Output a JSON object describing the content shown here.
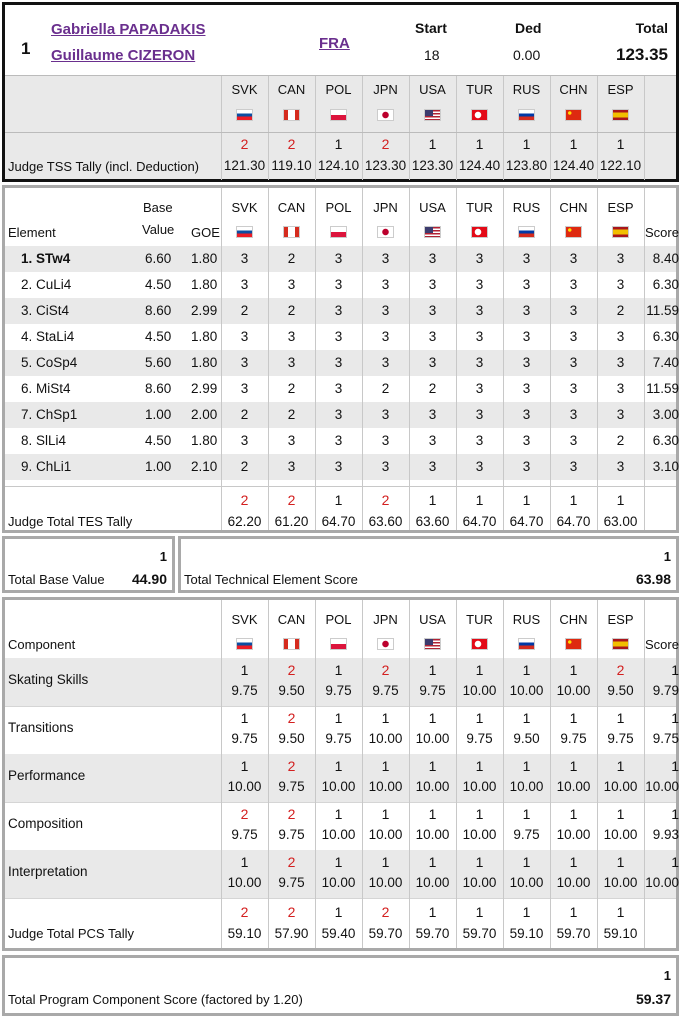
{
  "header": {
    "rank": "1",
    "name1": "Gabriella PAPADAKIS",
    "name2": "Guillaume CIZERON",
    "nation": "FRA",
    "start_label": "Start",
    "start": "18",
    "ded_label": "Ded",
    "ded": "0.00",
    "total_label": "Total",
    "total": "123.35"
  },
  "judges": [
    "SVK",
    "CAN",
    "POL",
    "JPN",
    "USA",
    "TUR",
    "RUS",
    "CHN",
    "ESP"
  ],
  "tss": {
    "label": "Judge TSS Tally (incl. Deduction)",
    "ranks": [
      "2",
      "2",
      "1",
      "2",
      "1",
      "1",
      "1",
      "1",
      "1"
    ],
    "scores": [
      "121.30",
      "119.10",
      "124.10",
      "123.30",
      "123.30",
      "124.40",
      "123.80",
      "124.40",
      "122.10"
    ]
  },
  "tes": {
    "col_element": "Element",
    "col_base1": "Base",
    "col_base2": "Value",
    "col_goe": "GOE",
    "col_score": "Score",
    "rows": [
      {
        "el": "1. STw4",
        "base": "6.60",
        "goe": "1.80",
        "marks": [
          "3",
          "2",
          "3",
          "3",
          "3",
          "3",
          "3",
          "3",
          "3"
        ],
        "score": "8.40"
      },
      {
        "el": "2. CuLi4",
        "base": "4.50",
        "goe": "1.80",
        "marks": [
          "3",
          "3",
          "3",
          "3",
          "3",
          "3",
          "3",
          "3",
          "3"
        ],
        "score": "6.30"
      },
      {
        "el": "3. CiSt4",
        "base": "8.60",
        "goe": "2.99",
        "marks": [
          "2",
          "2",
          "3",
          "3",
          "3",
          "3",
          "3",
          "3",
          "2"
        ],
        "score": "11.59"
      },
      {
        "el": "4. StaLi4",
        "base": "4.50",
        "goe": "1.80",
        "marks": [
          "3",
          "3",
          "3",
          "3",
          "3",
          "3",
          "3",
          "3",
          "3"
        ],
        "score": "6.30"
      },
      {
        "el": "5. CoSp4",
        "base": "5.60",
        "goe": "1.80",
        "marks": [
          "3",
          "3",
          "3",
          "3",
          "3",
          "3",
          "3",
          "3",
          "3"
        ],
        "score": "7.40"
      },
      {
        "el": "6. MiSt4",
        "base": "8.60",
        "goe": "2.99",
        "marks": [
          "3",
          "2",
          "3",
          "2",
          "2",
          "3",
          "3",
          "3",
          "3"
        ],
        "score": "11.59"
      },
      {
        "el": "7. ChSp1",
        "base": "1.00",
        "goe": "2.00",
        "marks": [
          "2",
          "2",
          "3",
          "3",
          "3",
          "3",
          "3",
          "3",
          "3"
        ],
        "score": "3.00"
      },
      {
        "el": "8. SlLi4",
        "base": "4.50",
        "goe": "1.80",
        "marks": [
          "3",
          "3",
          "3",
          "3",
          "3",
          "3",
          "3",
          "3",
          "2"
        ],
        "score": "6.30"
      },
      {
        "el": "9. ChLi1",
        "base": "1.00",
        "goe": "2.10",
        "marks": [
          "2",
          "3",
          "3",
          "3",
          "3",
          "3",
          "3",
          "3",
          "3"
        ],
        "score": "3.10"
      }
    ],
    "tally_label": "Judge Total TES Tally",
    "tally_ranks": [
      "2",
      "2",
      "1",
      "2",
      "1",
      "1",
      "1",
      "1",
      "1"
    ],
    "tally_scores": [
      "62.20",
      "61.20",
      "64.70",
      "63.60",
      "63.60",
      "64.70",
      "64.70",
      "64.70",
      "63.00"
    ]
  },
  "base_total": {
    "rank": "1",
    "label": "Total Base Value",
    "value": "44.90"
  },
  "tes_total": {
    "rank": "1",
    "label": "Total Technical Element Score",
    "value": "63.98"
  },
  "pcs": {
    "col_component": "Component",
    "col_score": "Score",
    "rows": [
      {
        "name": "Skating Skills",
        "ranks": [
          "1",
          "2",
          "1",
          "2",
          "1",
          "1",
          "1",
          "1",
          "2"
        ],
        "marks": [
          "9.75",
          "9.50",
          "9.75",
          "9.75",
          "9.75",
          "10.00",
          "10.00",
          "10.00",
          "9.50"
        ],
        "srank": "1",
        "score": "9.79"
      },
      {
        "name": "Transitions",
        "ranks": [
          "1",
          "2",
          "1",
          "1",
          "1",
          "1",
          "1",
          "1",
          "1"
        ],
        "marks": [
          "9.75",
          "9.50",
          "9.75",
          "10.00",
          "10.00",
          "9.75",
          "9.50",
          "9.75",
          "9.75"
        ],
        "srank": "1",
        "score": "9.75"
      },
      {
        "name": "Performance",
        "ranks": [
          "1",
          "2",
          "1",
          "1",
          "1",
          "1",
          "1",
          "1",
          "1"
        ],
        "marks": [
          "10.00",
          "9.75",
          "10.00",
          "10.00",
          "10.00",
          "10.00",
          "10.00",
          "10.00",
          "10.00"
        ],
        "srank": "1",
        "score": "10.00"
      },
      {
        "name": "Composition",
        "ranks": [
          "2",
          "2",
          "1",
          "1",
          "1",
          "1",
          "1",
          "1",
          "1"
        ],
        "marks": [
          "9.75",
          "9.75",
          "10.00",
          "10.00",
          "10.00",
          "10.00",
          "9.75",
          "10.00",
          "10.00"
        ],
        "srank": "1",
        "score": "9.93"
      },
      {
        "name": "Interpretation",
        "ranks": [
          "1",
          "2",
          "1",
          "1",
          "1",
          "1",
          "1",
          "1",
          "1"
        ],
        "marks": [
          "10.00",
          "9.75",
          "10.00",
          "10.00",
          "10.00",
          "10.00",
          "10.00",
          "10.00",
          "10.00"
        ],
        "srank": "1",
        "score": "10.00"
      }
    ],
    "tally_label": "Judge Total PCS Tally",
    "tally_ranks": [
      "2",
      "2",
      "1",
      "2",
      "1",
      "1",
      "1",
      "1",
      "1"
    ],
    "tally_scores": [
      "59.10",
      "57.90",
      "59.40",
      "59.70",
      "59.70",
      "59.70",
      "59.10",
      "59.70",
      "59.10"
    ]
  },
  "pcs_total": {
    "rank": "1",
    "label": "Total Program Component Score (factored by 1.20)",
    "value": "59.37"
  },
  "colors": {
    "red": "#d31f1f",
    "link": "#6a2f8e",
    "row_gray": "#e9e9e9"
  }
}
